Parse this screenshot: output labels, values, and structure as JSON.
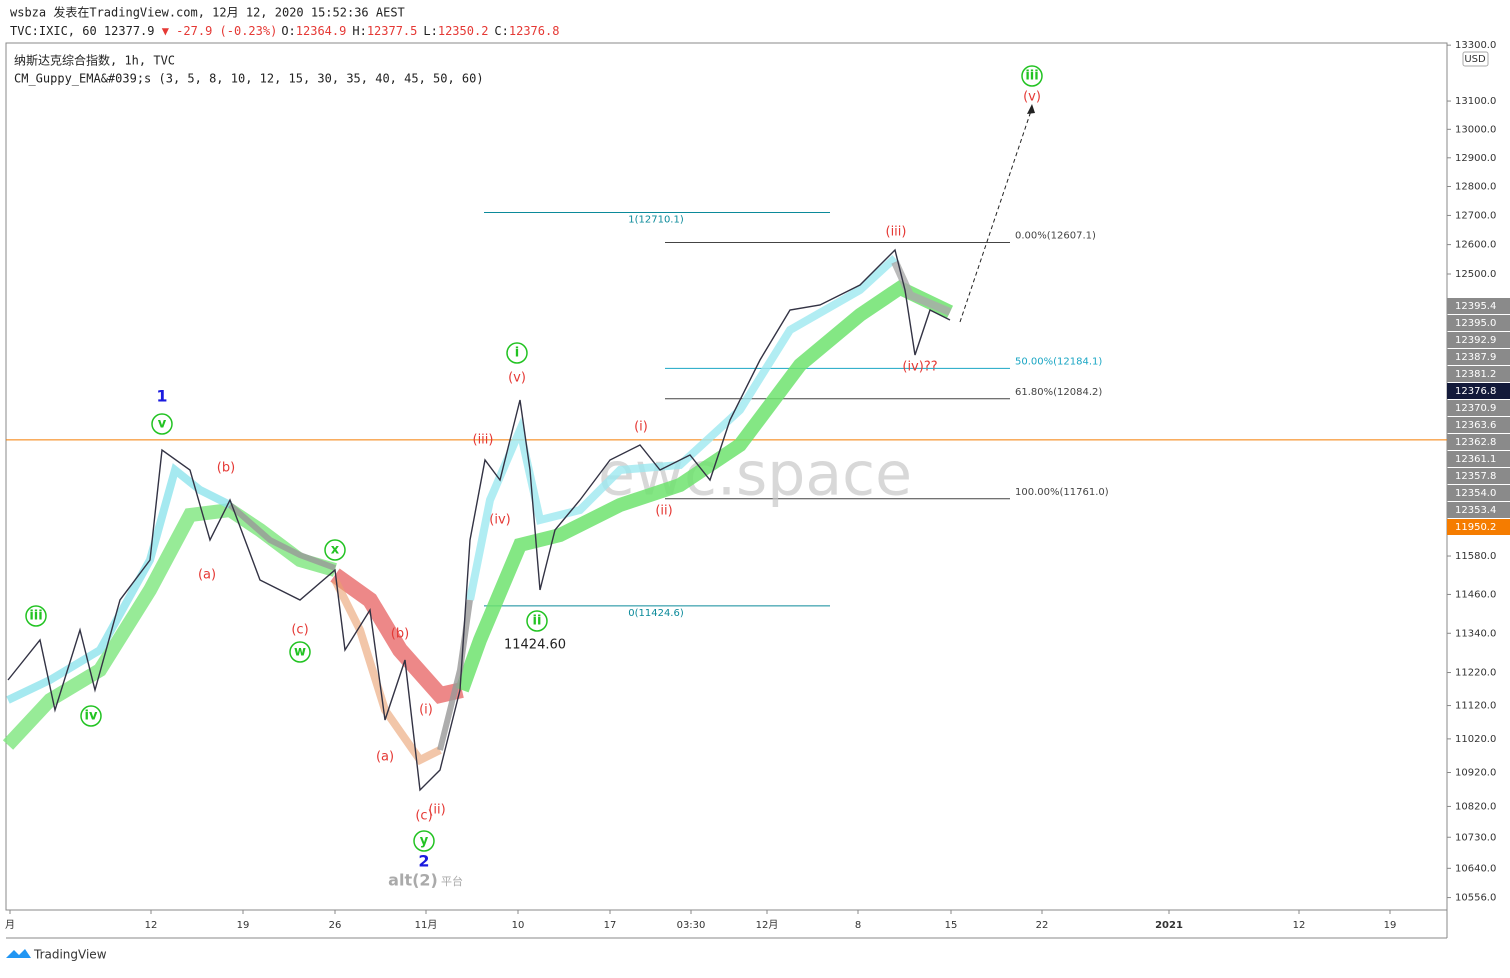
{
  "header": {
    "line1": "wsbza 发表在TradingView.com, 12月 12, 2020 15:52:36 AEST",
    "symbol": "TVC:IXIC, 60 12377.9",
    "change": "▼ -27.9 (-0.23%)",
    "ohlc": [
      {
        "k": "O:",
        "v": "12364.9"
      },
      {
        "k": "H:",
        "v": "12377.5"
      },
      {
        "k": "L:",
        "v": "12350.2"
      },
      {
        "k": "C:",
        "v": "12376.8"
      }
    ]
  },
  "legend": [
    "纳斯达克综合指数, 1h, TVC",
    "CM_Guppy_EMA&#039;s (3, 5, 8, 10, 12, 15, 30, 35, 40, 45, 50, 60)"
  ],
  "price_axis": {
    "currency": "USD",
    "log_scale": true,
    "ticks": [
      {
        "value": 13300,
        "label": "13300.0"
      },
      {
        "value": 13100,
        "label": "13100.0"
      },
      {
        "value": 13000,
        "label": "13000.0"
      },
      {
        "value": 12900,
        "label": "12900.0"
      },
      {
        "value": 12800,
        "label": "12800.0"
      },
      {
        "value": 12700,
        "label": "12700.0"
      },
      {
        "value": 12600,
        "label": "12600.0"
      },
      {
        "value": 12500,
        "label": "12500.0"
      },
      {
        "value": 11580,
        "label": "11580.0"
      },
      {
        "value": 11460,
        "label": "11460.0"
      },
      {
        "value": 11340,
        "label": "11340.0"
      },
      {
        "value": 11220,
        "label": "11220.0"
      },
      {
        "value": 11120,
        "label": "11120.0"
      },
      {
        "value": 11020,
        "label": "11020.0"
      },
      {
        "value": 10920,
        "label": "10920.0"
      },
      {
        "value": 10820,
        "label": "10820.0"
      },
      {
        "value": 10730,
        "label": "10730.0"
      },
      {
        "value": 10640,
        "label": "10640.0"
      },
      {
        "value": 10556,
        "label": "10556.0"
      }
    ],
    "price_labels": [
      "12395.4",
      "12395.0",
      "12392.9",
      "12387.9",
      "12381.2",
      "12376.8",
      "12370.9",
      "12363.6",
      "12362.8",
      "12361.1",
      "12357.8",
      "12354.0",
      "12353.4",
      "11950.2"
    ],
    "alert_level": 11950.2
  },
  "time_axis": [
    "月",
    "12",
    "19",
    "26",
    "11月",
    "10",
    "17",
    "03:30",
    "12月",
    "8",
    "15",
    "22",
    "2021",
    "12",
    "19"
  ],
  "fib_left": [
    {
      "label": "1(12710.1)",
      "value": 12710.1
    },
    {
      "label": "0(11424.6)",
      "value": 11424.6
    }
  ],
  "fib_right": [
    {
      "label": "0.00%(12607.1)",
      "value": 12607.1
    },
    {
      "label": "50.00%(12184.1)",
      "value": 12184.1
    },
    {
      "label": "61.80%(12084.2)",
      "value": 12084.2
    },
    {
      "label": "100.00%(11761.0)",
      "value": 11761.0
    }
  ],
  "annotations": [
    "iii",
    "iv",
    "v",
    "1",
    "(b)",
    "(a)",
    "(c)",
    "w",
    "x",
    "(b)",
    "(a)",
    "(i)",
    "(c)",
    "(ii)",
    "y",
    "2",
    "alt(2)",
    "平台",
    "i",
    "(v)",
    "(iii)",
    "(iv)",
    "ii",
    "11424.60",
    "(i)",
    "(ii)",
    "(iii)",
    "(iv)??",
    "iii",
    "(v)"
  ],
  "watermark": "ewc.space",
  "footer": "TradingView"
}
